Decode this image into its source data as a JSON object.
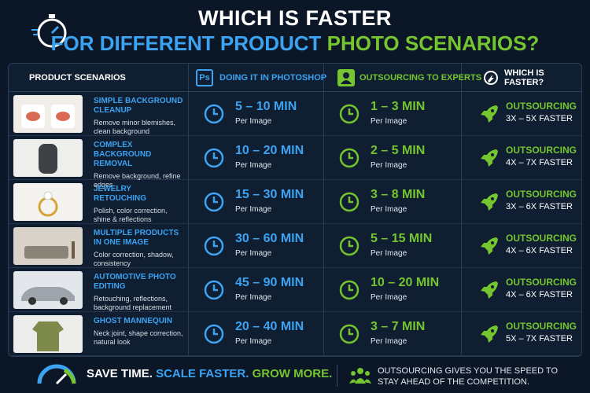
{
  "title": {
    "line1": "WHICH IS FASTER",
    "line2_blue": "FOR DIFFERENT PRODUCT",
    "line2_green": "PHOTO SCENARIOS?"
  },
  "table": {
    "headers": {
      "scenarios": "PRODUCT SCENARIOS",
      "ps_badge": "Ps",
      "photoshop": "DOING IT IN PHOTOSHOP",
      "outsourcing": "OUTSOURCING TO EXPERTS",
      "faster": "WHICH IS FASTER?"
    },
    "rows": [
      {
        "title": "SIMPLE BACKGROUND CLEANUP",
        "description": "Remove minor blemishes, clean background",
        "photoshop_time": "5 – 10 MIN",
        "photoshop_unit": "Per Image",
        "outsourcing_time": "1 – 3 MIN",
        "outsourcing_unit": "Per Image",
        "winner": "OUTSOURCING",
        "speedup": "3X – 5X FASTER"
      },
      {
        "title": "COMPLEX BACKGROUND REMOVAL",
        "description": "Remove background, refine edges",
        "photoshop_time": "10 – 20 MIN",
        "photoshop_unit": "Per Image",
        "outsourcing_time": "2 – 5 MIN",
        "outsourcing_unit": "Per Image",
        "winner": "OUTSOURCING",
        "speedup": "4X – 7X FASTER"
      },
      {
        "title": "JEWELRY RETOUCHING",
        "description": "Polish, color correction, shine & reflections",
        "photoshop_time": "15 – 30 MIN",
        "photoshop_unit": "Per Image",
        "outsourcing_time": "3 – 8 MIN",
        "outsourcing_unit": "Per Image",
        "winner": "OUTSOURCING",
        "speedup": "3X – 6X FASTER"
      },
      {
        "title": "MULTIPLE PRODUCTS IN ONE IMAGE",
        "description": "Color correction, shadow, consistency",
        "photoshop_time": "30 – 60 MIN",
        "photoshop_unit": "Per Image",
        "outsourcing_time": "5 – 15 MIN",
        "outsourcing_unit": "Per Image",
        "winner": "OUTSOURCING",
        "speedup": "4X – 6X FASTER"
      },
      {
        "title": "AUTOMOTIVE PHOTO EDITING",
        "description": "Retouching, reflections, background replacement",
        "photoshop_time": "45 – 90 MIN",
        "photoshop_unit": "Per Image",
        "outsourcing_time": "10 – 20 MIN",
        "outsourcing_unit": "Per Image",
        "winner": "OUTSOURCING",
        "speedup": "4X – 6X FASTER"
      },
      {
        "title": "GHOST MANNEQUIN",
        "description": "Neck joint, shape correction, natural look",
        "photoshop_time": "20 – 40 MIN",
        "photoshop_unit": "Per Image",
        "outsourcing_time": "3 – 7 MIN",
        "outsourcing_unit": "Per Image",
        "winner": "OUTSOURCING",
        "speedup": "5X – 7X FASTER"
      }
    ]
  },
  "footer": {
    "save": "SAVE TIME.",
    "scale": "SCALE FASTER.",
    "grow": "GROW MORE.",
    "message": "OUTSOURCING GIVES YOU THE SPEED TO STAY AHEAD OF THE COMPETITION."
  }
}
